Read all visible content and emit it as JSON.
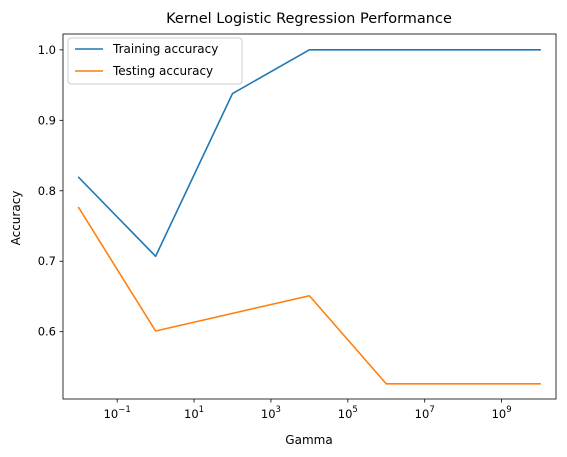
{
  "chart_data": {
    "type": "line",
    "title": "Kernel Logistic Regression Performance",
    "xlabel": "Gamma",
    "ylabel": "Accuracy",
    "xscale": "log",
    "xlim": [
      0.0039,
      26000000000
    ],
    "ylim": [
      0.5045,
      1.0225
    ],
    "x": [
      0.01,
      1,
      100,
      10000,
      1000000,
      10000000000
    ],
    "x_ticks": [
      {
        "value": 0.1,
        "base": "10",
        "exp": "−1"
      },
      {
        "value": 10,
        "base": "10",
        "exp": "1"
      },
      {
        "value": 1000,
        "base": "10",
        "exp": "3"
      },
      {
        "value": 100000,
        "base": "10",
        "exp": "5"
      },
      {
        "value": 10000000,
        "base": "10",
        "exp": "7"
      },
      {
        "value": 1000000000,
        "base": "10",
        "exp": "9"
      }
    ],
    "y_ticks": [
      {
        "value": 0.6,
        "label": "0.6"
      },
      {
        "value": 0.7,
        "label": "0.7"
      },
      {
        "value": 0.8,
        "label": "0.8"
      },
      {
        "value": 0.9,
        "label": "0.9"
      },
      {
        "value": 1.0,
        "label": "1.0"
      }
    ],
    "grid": false,
    "legend_position": "top-left",
    "series": [
      {
        "name": "Training accuracy",
        "color": "#1f77b4",
        "values": [
          0.819,
          0.707,
          0.938,
          1.0,
          1.0,
          1.0
        ]
      },
      {
        "name": "Testing accuracy",
        "color": "#ff7f0e",
        "values": [
          0.776,
          0.601,
          0.626,
          0.651,
          0.526,
          0.526
        ]
      }
    ]
  }
}
